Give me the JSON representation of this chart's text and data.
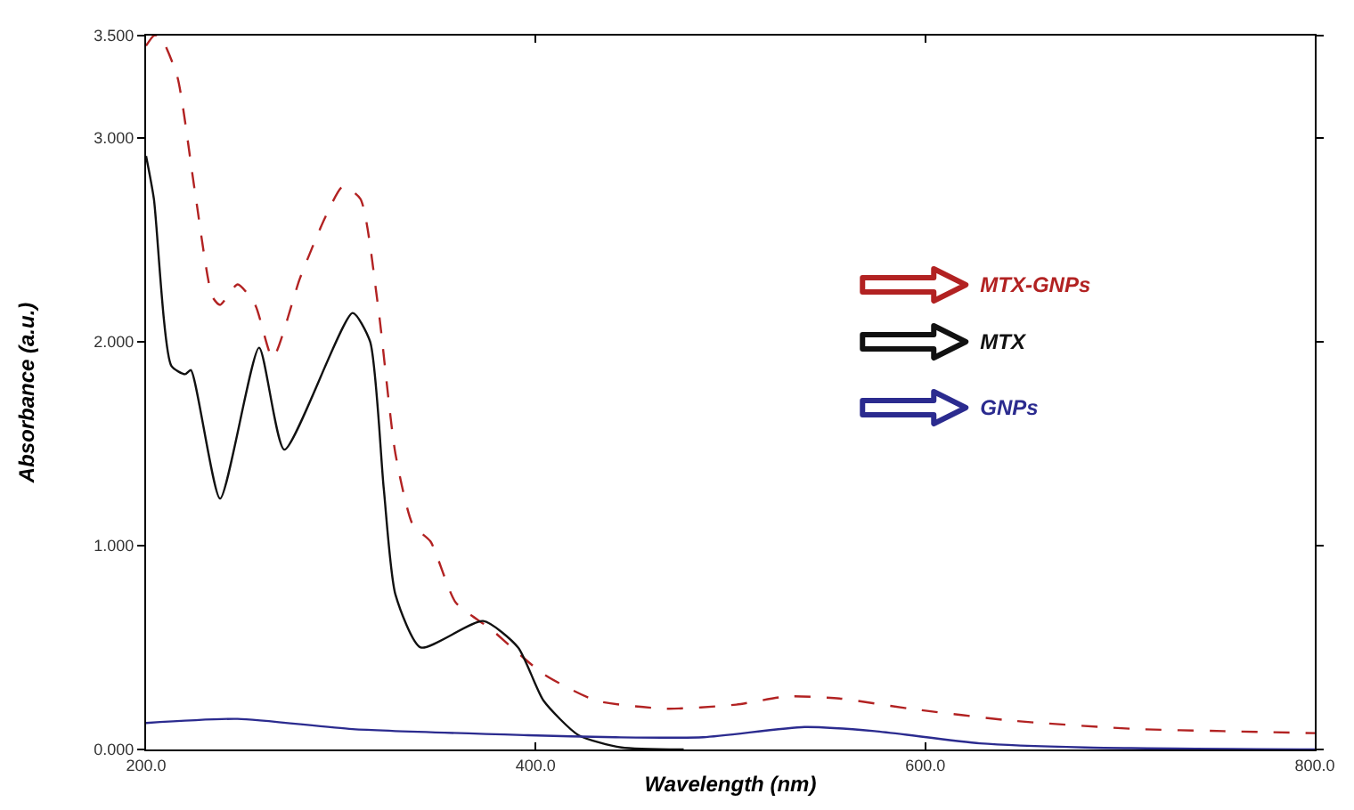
{
  "chart_data": {
    "type": "line",
    "xlabel": "Wavelength (nm)",
    "ylabel": "Absorbance (a.u.)",
    "xlim": [
      200,
      800
    ],
    "xticks": [
      {
        "value": 200,
        "label": "200.0"
      },
      {
        "value": 400,
        "label": "400.0"
      },
      {
        "value": 600,
        "label": "600.0"
      },
      {
        "value": 800,
        "label": "800.0"
      }
    ],
    "ylim": [
      0,
      3.5
    ],
    "yticks": [
      {
        "value": 0,
        "label": "0.000"
      },
      {
        "value": 1,
        "label": "1.000"
      },
      {
        "value": 2,
        "label": "2.000"
      },
      {
        "value": 3,
        "label": "3.000"
      },
      {
        "value": 3.5,
        "label": "3.500"
      }
    ],
    "grid": false,
    "legend": "right",
    "marker": "none",
    "series": [
      {
        "name": "MTX-GNPs",
        "color": "#b22222",
        "line_style": "dashed",
        "x": [
          200,
          204,
          207,
          216,
          225,
          234,
          238,
          247,
          256,
          265,
          279,
          292,
          301,
          310,
          319,
          328,
          337,
          346,
          359,
          377,
          404,
          431,
          467,
          503,
          529,
          556,
          592,
          646,
          709,
          753,
          800
        ],
        "values": [
          3.45,
          3.5,
          3.5,
          3.3,
          2.74,
          2.22,
          2.18,
          2.28,
          2.18,
          1.92,
          2.31,
          2.61,
          2.76,
          2.7,
          2.18,
          1.45,
          1.1,
          1.02,
          0.72,
          0.59,
          0.37,
          0.24,
          0.2,
          0.22,
          0.26,
          0.25,
          0.2,
          0.14,
          0.1,
          0.09,
          0.08
        ]
      },
      {
        "name": "MTX",
        "color": "#111111",
        "line_style": "solid",
        "x": [
          200,
          204,
          213,
          220,
          223,
          238,
          258,
          271,
          306,
          315,
          322,
          328,
          341,
          373,
          391,
          404,
          422,
          444,
          476
        ],
        "values": [
          2.91,
          2.7,
          1.88,
          1.84,
          1.86,
          1.23,
          1.97,
          1.47,
          2.14,
          2.0,
          1.28,
          0.76,
          0.5,
          0.63,
          0.5,
          0.24,
          0.07,
          0.01,
          0
        ]
      },
      {
        "name": "GNPs",
        "color": "#2b2b8f",
        "line_style": "solid",
        "x": [
          200,
          247,
          306,
          396,
          441,
          486,
          538,
          574,
          628,
          682,
          800
        ],
        "values": [
          0.13,
          0.15,
          0.1,
          0.07,
          0.06,
          0.06,
          0.11,
          0.09,
          0.03,
          0.01,
          0
        ]
      }
    ]
  }
}
